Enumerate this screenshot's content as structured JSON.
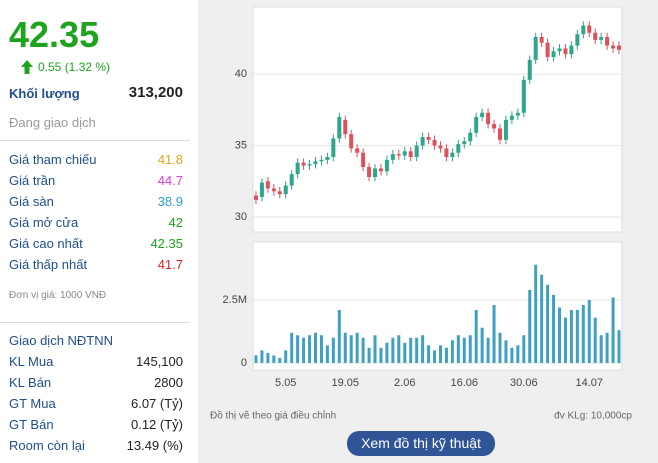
{
  "panel": {
    "price": "42.35",
    "price_color": "#1ea31e",
    "change": "0.55 (1.32 %)",
    "volume_label": "Khối lượng",
    "volume": "313,200",
    "status": "Đang giao dịch",
    "prices": [
      {
        "label": "Giá tham chiếu",
        "value": "41.8",
        "color": "#e8a317"
      },
      {
        "label": "Giá trần",
        "value": "44.7",
        "color": "#e03ce0"
      },
      {
        "label": "Giá sàn",
        "value": "38.9",
        "color": "#2a9fd0"
      },
      {
        "label": "Giá mở cửa",
        "value": "42",
        "color": "#1ea31e"
      },
      {
        "label": "Giá cao nhất",
        "value": "42.35",
        "color": "#1ea31e"
      },
      {
        "label": "Giá thấp nhất",
        "value": "41.7",
        "color": "#e02020"
      }
    ],
    "unit_note": "Đơn vị giá: 1000 VNĐ",
    "foreign": {
      "title": "Giao dịch NĐTNN",
      "rows": [
        {
          "label": "KL Mua",
          "value": "145,100"
        },
        {
          "label": "KL Bán",
          "value": "2800"
        },
        {
          "label": "GT Mua",
          "value": "6.07 (Tỷ)"
        },
        {
          "label": "GT Bán",
          "value": "0.12 (Tỷ)"
        },
        {
          "label": "Room còn lại",
          "value": "13.49 (%)"
        }
      ]
    }
  },
  "notes": {
    "adjusted": "Đồ thị vẽ theo giá điều chỉnh",
    "volume_unit": "đv KLg: 10,000cp",
    "button": "Xem đồ thị kỹ thuật"
  },
  "chart_data": [
    {
      "type": "candlestick",
      "up_color": "#2ea68a",
      "down_color": "#e0505a",
      "ylim": [
        28.95,
        44.7
      ],
      "yticks": [
        30,
        35,
        40
      ],
      "grid": true,
      "open": [
        31.5,
        31.4,
        32.5,
        32.0,
        31.8,
        31.6,
        32.2,
        33.0,
        33.8,
        33.6,
        33.7,
        33.9,
        34.0,
        34.2,
        35.5,
        36.8,
        35.8,
        34.8,
        34.5,
        33.5,
        32.8,
        33.4,
        33.2,
        34.0,
        34.4,
        34.3,
        34.6,
        34.2,
        35.0,
        35.6,
        35.4,
        35.0,
        34.8,
        34.2,
        34.5,
        35.1,
        35.3,
        35.9,
        37.0,
        37.3,
        36.5,
        36.2,
        35.4,
        36.8,
        37.1,
        37.3,
        39.6,
        41.0,
        42.6,
        42.2,
        41.2,
        41.6,
        41.8,
        41.4,
        42.0,
        42.8,
        43.4,
        42.9,
        42.4,
        42.6,
        42.0,
        42.0
      ],
      "high": [
        31.8,
        32.7,
        32.8,
        32.3,
        32.1,
        32.5,
        33.3,
        34.1,
        34.1,
        34.0,
        34.2,
        34.3,
        34.5,
        35.8,
        37.3,
        37.1,
        36.1,
        35.1,
        34.8,
        33.8,
        33.7,
        33.7,
        34.3,
        34.7,
        34.7,
        34.9,
        34.9,
        35.3,
        35.9,
        35.9,
        35.7,
        35.3,
        35.1,
        34.8,
        35.4,
        35.6,
        36.2,
        37.3,
        37.6,
        37.6,
        36.8,
        36.5,
        37.1,
        37.4,
        37.6,
        39.9,
        41.3,
        42.9,
        42.9,
        42.5,
        41.9,
        42.1,
        42.1,
        42.3,
        43.1,
        43.7,
        43.7,
        43.2,
        42.9,
        42.9,
        42.3,
        42.3
      ],
      "low": [
        30.9,
        31.1,
        31.7,
        31.5,
        31.3,
        31.3,
        31.9,
        32.7,
        33.3,
        33.3,
        33.4,
        33.6,
        33.7,
        33.9,
        35.2,
        35.5,
        34.5,
        34.2,
        33.2,
        32.5,
        32.5,
        32.9,
        32.9,
        33.7,
        34.0,
        34.0,
        33.9,
        33.9,
        34.7,
        35.1,
        34.7,
        34.5,
        33.9,
        33.9,
        34.2,
        34.8,
        35.0,
        35.6,
        36.7,
        36.2,
        35.9,
        35.1,
        35.1,
        36.5,
        36.8,
        37.0,
        39.3,
        40.7,
        41.9,
        40.9,
        40.9,
        41.3,
        41.1,
        41.1,
        41.7,
        42.5,
        42.6,
        42.1,
        42.1,
        41.7,
        41.5,
        41.4
      ],
      "close": [
        31.2,
        32.4,
        32.0,
        31.8,
        31.6,
        32.2,
        33.0,
        33.8,
        33.6,
        33.7,
        33.9,
        34.0,
        34.2,
        35.5,
        37.0,
        35.8,
        34.8,
        34.5,
        33.5,
        32.8,
        33.4,
        33.2,
        34.0,
        34.4,
        34.3,
        34.6,
        34.2,
        35.0,
        35.6,
        35.4,
        35.0,
        34.8,
        34.2,
        34.5,
        35.1,
        35.3,
        35.9,
        37.0,
        37.3,
        36.5,
        36.2,
        35.4,
        36.8,
        37.1,
        37.3,
        39.6,
        41.0,
        42.6,
        42.2,
        41.2,
        41.6,
        41.8,
        41.4,
        42.0,
        42.8,
        43.4,
        42.9,
        42.4,
        42.6,
        42.0,
        41.8,
        41.7
      ]
    },
    {
      "type": "bar",
      "color": "#3fa0c4",
      "ylim": [
        -280000,
        4800000
      ],
      "yticks": [
        0,
        {
          "value": 2500000,
          "label": "2.5M"
        }
      ],
      "grid": true,
      "categories": [
        null,
        null,
        null,
        null,
        null,
        "5.05",
        null,
        null,
        null,
        null,
        null,
        null,
        null,
        null,
        null,
        "19.05",
        null,
        null,
        null,
        null,
        null,
        null,
        null,
        null,
        null,
        "2.06",
        null,
        null,
        null,
        null,
        null,
        null,
        null,
        null,
        null,
        "16.06",
        null,
        null,
        null,
        null,
        null,
        null,
        null,
        null,
        null,
        "30.06",
        null,
        null,
        null,
        null,
        null,
        null,
        null,
        null,
        null,
        null,
        "14.07",
        null,
        null,
        null,
        null,
        null
      ],
      "values": [
        300000,
        500000,
        400000,
        300000,
        200000,
        500000,
        1200000,
        1100000,
        1000000,
        1100000,
        1200000,
        1100000,
        700000,
        1000000,
        2100000,
        1200000,
        1100000,
        1200000,
        1000000,
        600000,
        1100000,
        600000,
        800000,
        1000000,
        1100000,
        800000,
        1000000,
        1000000,
        1100000,
        700000,
        500000,
        700000,
        600000,
        900000,
        1100000,
        1000000,
        1100000,
        2100000,
        1400000,
        1000000,
        2300000,
        1200000,
        900000,
        600000,
        700000,
        1100000,
        2900000,
        3900000,
        3500000,
        3100000,
        2700000,
        2200000,
        1800000,
        2100000,
        2100000,
        2300000,
        2500000,
        1800000,
        1100000,
        1200000,
        2600000,
        1300000
      ]
    }
  ]
}
